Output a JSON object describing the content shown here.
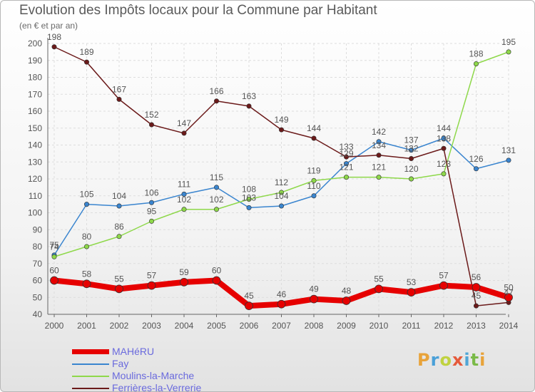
{
  "chart_data": {
    "type": "line",
    "title": "Evolution des Impôts locaux pour la Commune par Habitant",
    "subtitle": "(en € et par an)",
    "xlabel": "",
    "ylabel": "",
    "categories": [
      "2000",
      "2001",
      "2002",
      "2003",
      "2004",
      "2005",
      "2006",
      "2007",
      "2008",
      "2009",
      "2010",
      "2011",
      "2012",
      "2013",
      "2014"
    ],
    "ylim": [
      40,
      200
    ],
    "yticks": [
      40,
      50,
      60,
      70,
      80,
      90,
      100,
      110,
      120,
      130,
      140,
      150,
      160,
      170,
      180,
      190,
      200
    ],
    "grid": true,
    "legend_position": "bottom-left",
    "series": [
      {
        "name": "MAHéRU",
        "color": "#e60000",
        "values": [
          60,
          58,
          55,
          57,
          59,
          60,
          45,
          46,
          49,
          48,
          55,
          53,
          57,
          56,
          50
        ]
      },
      {
        "name": "Fay",
        "color": "#3a85cf",
        "values": [
          75,
          105,
          104,
          106,
          111,
          115,
          103,
          104,
          110,
          129,
          142,
          137,
          144,
          126,
          131
        ]
      },
      {
        "name": "Moulins-la-Marche",
        "color": "#8ed84a",
        "values": [
          74,
          80,
          86,
          95,
          102,
          102,
          108,
          112,
          119,
          121,
          121,
          120,
          123,
          188,
          195
        ]
      },
      {
        "name": "Ferrières-la-Verrerie",
        "color": "#6b1a1a",
        "values": [
          198,
          189,
          167,
          152,
          147,
          166,
          163,
          149,
          144,
          133,
          134,
          132,
          138,
          45,
          47
        ]
      }
    ]
  },
  "logo": {
    "letters": [
      "P",
      "r",
      "o",
      "x",
      "i",
      "t",
      "i"
    ]
  }
}
